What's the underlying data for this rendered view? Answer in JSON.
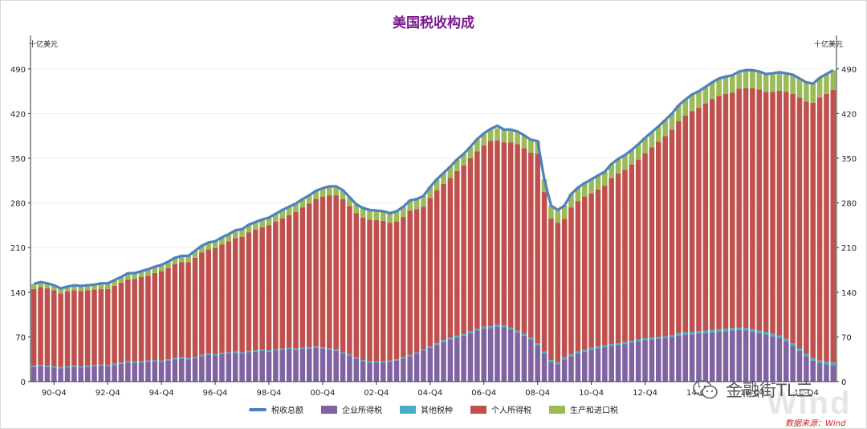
{
  "chart_data": {
    "type": "bar",
    "stacked": true,
    "title": "美国税收构成",
    "ylabel_left": "十亿美元",
    "ylabel_right": "十亿美元",
    "ylim": [
      0,
      525
    ],
    "yticks": [
      0,
      70,
      140,
      210,
      280,
      350,
      420,
      490
    ],
    "grid": true,
    "legend_position": "bottom",
    "x_tick_labels": [
      {
        "label": "90-Q4",
        "index": 3
      },
      {
        "label": "92-Q4",
        "index": 11
      },
      {
        "label": "94-Q4",
        "index": 19
      },
      {
        "label": "96-Q4",
        "index": 27
      },
      {
        "label": "98-Q4",
        "index": 35
      },
      {
        "label": "00-Q4",
        "index": 43
      },
      {
        "label": "02-Q4",
        "index": 51
      },
      {
        "label": "04-Q4",
        "index": 59
      },
      {
        "label": "06-Q4",
        "index": 67
      },
      {
        "label": "08-Q4",
        "index": 75
      },
      {
        "label": "10-Q4",
        "index": 83
      },
      {
        "label": "12-Q4",
        "index": 91
      },
      {
        "label": "14-Q4",
        "index": 99
      },
      {
        "label": "16-Q4",
        "index": 107
      },
      {
        "label": "18-Q4",
        "index": 115
      }
    ],
    "quarters_start": "90-Q1",
    "quarters_end": "18-Q4",
    "series": [
      {
        "name": "企业所得税",
        "color": "#8064a2",
        "values": [
          23,
          24,
          23,
          22,
          21,
          22,
          23,
          22,
          23,
          24,
          25,
          24,
          26,
          28,
          30,
          29,
          30,
          31,
          32,
          31,
          33,
          35,
          36,
          35,
          37,
          40,
          42,
          41,
          43,
          44,
          45,
          44,
          46,
          47,
          48,
          47,
          49,
          50,
          51,
          50,
          51,
          52,
          53,
          52,
          50,
          48,
          44,
          41,
          36,
          32,
          30,
          29,
          30,
          31,
          33,
          36,
          40,
          44,
          49,
          53,
          57,
          62,
          66,
          69,
          72,
          76,
          80,
          83,
          84,
          86,
          85,
          82,
          77,
          72,
          66,
          57,
          44,
          31,
          27,
          35,
          40,
          44,
          47,
          50,
          52,
          54,
          56,
          57,
          59,
          61,
          63,
          65,
          66,
          67,
          68,
          70,
          72,
          73,
          74,
          75,
          76,
          77,
          78,
          79,
          80,
          81,
          80,
          78,
          76,
          74,
          71,
          68,
          63,
          56,
          48,
          40,
          33,
          29,
          27,
          26
        ]
      },
      {
        "name": "其他税种",
        "color": "#4bacc6",
        "values": [
          2,
          2,
          2,
          2,
          2,
          2,
          2,
          2,
          2,
          2,
          2,
          2,
          2,
          2,
          2,
          2,
          2,
          2,
          2,
          2,
          2,
          2,
          2,
          2,
          2,
          2,
          2,
          2,
          2,
          2,
          2,
          2,
          2,
          2,
          2,
          2,
          2,
          2,
          2,
          2,
          2,
          2,
          2,
          2,
          2,
          2,
          2,
          2,
          2,
          2,
          2,
          2,
          2,
          2,
          2,
          2,
          2,
          2,
          2,
          2,
          3,
          3,
          3,
          3,
          3,
          3,
          3,
          3,
          3,
          3,
          3,
          3,
          3,
          3,
          3,
          3,
          3,
          3,
          3,
          3,
          3,
          3,
          3,
          3,
          3,
          3,
          3,
          3,
          3,
          3,
          3,
          3,
          3,
          3,
          3,
          3,
          4,
          4,
          4,
          4,
          4,
          4,
          4,
          4,
          4,
          4,
          4,
          4,
          4,
          4,
          4,
          4,
          4,
          4,
          4,
          4,
          4,
          4,
          4,
          4
        ]
      },
      {
        "name": "个人所得税",
        "color": "#c0504d",
        "values": [
          120,
          122,
          121,
          119,
          115,
          117,
          118,
          118,
          118,
          118,
          118,
          119,
          122,
          125,
          128,
          130,
          132,
          133,
          136,
          140,
          143,
          147,
          149,
          150,
          155,
          160,
          163,
          166,
          170,
          174,
          178,
          181,
          186,
          189,
          192,
          196,
          200,
          204,
          208,
          214,
          220,
          225,
          231,
          236,
          240,
          242,
          240,
          232,
          226,
          223,
          222,
          222,
          220,
          216,
          216,
          220,
          226,
          224,
          223,
          233,
          240,
          245,
          250,
          258,
          264,
          271,
          278,
          284,
          290,
          289,
          287,
          290,
          292,
          291,
          290,
          297,
          250,
          222,
          219,
          217,
          230,
          236,
          240,
          242,
          246,
          250,
          260,
          266,
          270,
          276,
          282,
          290,
          298,
          306,
          314,
          322,
          332,
          340,
          346,
          350,
          356,
          362,
          366,
          368,
          369,
          374,
          376,
          378,
          378,
          376,
          379,
          384,
          387,
          391,
          393,
          395,
          400,
          412,
          420,
          427
        ]
      },
      {
        "name": "生产和进口税",
        "color": "#9bbb59",
        "values": [
          8,
          8,
          8,
          8,
          8,
          8,
          8,
          8,
          8,
          8,
          9,
          9,
          9,
          9,
          9,
          9,
          9,
          10,
          10,
          10,
          10,
          10,
          10,
          10,
          11,
          11,
          11,
          11,
          11,
          11,
          12,
          12,
          12,
          12,
          12,
          12,
          12,
          13,
          13,
          13,
          13,
          13,
          13,
          13,
          14,
          14,
          14,
          14,
          14,
          15,
          15,
          15,
          15,
          15,
          16,
          16,
          16,
          16,
          17,
          17,
          17,
          17,
          18,
          18,
          18,
          18,
          19,
          19,
          19,
          19,
          20,
          20,
          20,
          20,
          20,
          20,
          20,
          20,
          20,
          21,
          21,
          21,
          22,
          22,
          22,
          22,
          22,
          23,
          23,
          23,
          24,
          24,
          24,
          24,
          25,
          25,
          25,
          25,
          26,
          26,
          26,
          26,
          27,
          27,
          27,
          27,
          28,
          28,
          28,
          28,
          29,
          29,
          29,
          30,
          30,
          30,
          30,
          31,
          31,
          31
        ]
      },
      {
        "name": "税收总额",
        "color": "#4f81bd",
        "type": "line",
        "values": [
          153,
          156,
          154,
          151,
          146,
          149,
          151,
          150,
          151,
          152,
          154,
          154,
          159,
          164,
          170,
          170,
          173,
          176,
          180,
          183,
          188,
          194,
          197,
          197,
          205,
          213,
          218,
          220,
          226,
          231,
          237,
          239,
          246,
          250,
          254,
          257,
          263,
          269,
          274,
          279,
          286,
          292,
          299,
          303,
          306,
          306,
          300,
          289,
          278,
          272,
          269,
          268,
          267,
          264,
          267,
          274,
          284,
          286,
          291,
          305,
          317,
          327,
          337,
          348,
          357,
          368,
          380,
          389,
          396,
          401,
          395,
          395,
          392,
          386,
          379,
          377,
          317,
          276,
          269,
          276,
          294,
          304,
          311,
          317,
          323,
          329,
          341,
          349,
          355,
          363,
          372,
          382,
          391,
          400,
          410,
          420,
          433,
          442,
          450,
          455,
          462,
          469,
          475,
          478,
          480,
          486,
          488,
          488,
          486,
          482,
          483,
          485,
          483,
          481,
          475,
          469,
          467,
          476,
          482,
          488
        ]
      }
    ],
    "series_labels": [
      "税收总额",
      "企业所得税",
      "其他税种",
      "个人所得税",
      "生产和进口税"
    ],
    "source": "数据来源：Wind"
  },
  "watermark": {
    "text": "金融街TL三",
    "icon": "wechat-icon",
    "logo_text": "Wind"
  }
}
